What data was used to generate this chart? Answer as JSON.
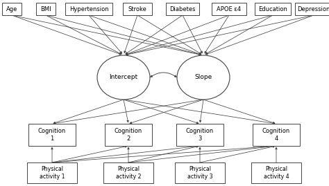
{
  "covariate_labels": [
    "Age",
    "BMI",
    "Hypertension",
    "Stroke",
    "Diabetes",
    "APOE ε4",
    "Education",
    "Depression"
  ],
  "latent_labels": [
    "Intercept",
    "Slope"
  ],
  "cognition_labels": [
    "Cognition\n1",
    "Cognition\n2",
    "Cognition\n3",
    "Cognition\n4"
  ],
  "physical_labels": [
    "Physical\nactivity 1",
    "Physical\nactivity 2",
    "Physical\nactivity 3",
    "Physical\nactivity 4"
  ],
  "bg_color": "#ffffff",
  "box_edge_color": "#444444",
  "arrow_color": "#444444",
  "font_size": 6.0
}
